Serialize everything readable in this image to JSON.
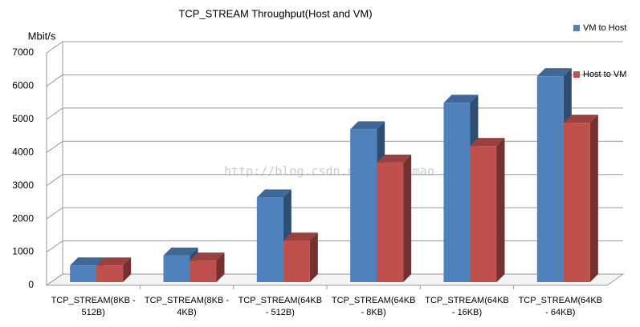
{
  "chart_data": {
    "type": "bar3d",
    "title": "TCP_STREAM Throughput(Host and VM)",
    "y_label": "Mbit/s",
    "categories": [
      "TCP_STREAM(8KB - 512B)",
      "TCP_STREAM(8KB - 4KB)",
      "TCP_STREAM(64KB - 512B)",
      "TCP_STREAM(64KB - 8KB)",
      "TCP_STREAM(64KB - 16KB)",
      "TCP_STREAM(64KB - 64KB)"
    ],
    "series": [
      {
        "name": "VM to Host",
        "color": "#4f81bd",
        "values": [
          500,
          800,
          2550,
          4600,
          5400,
          6200
        ]
      },
      {
        "name": "Host to VM",
        "color": "#c0504d",
        "values": [
          500,
          650,
          1250,
          3600,
          4100,
          4800
        ]
      }
    ],
    "ylim": [
      0,
      7000
    ],
    "yticks": [
      0,
      1000,
      2000,
      3000,
      4000,
      5000,
      6000,
      7000
    ],
    "grid": true,
    "watermark": "http://blog.csdn.net/matt_mao"
  }
}
